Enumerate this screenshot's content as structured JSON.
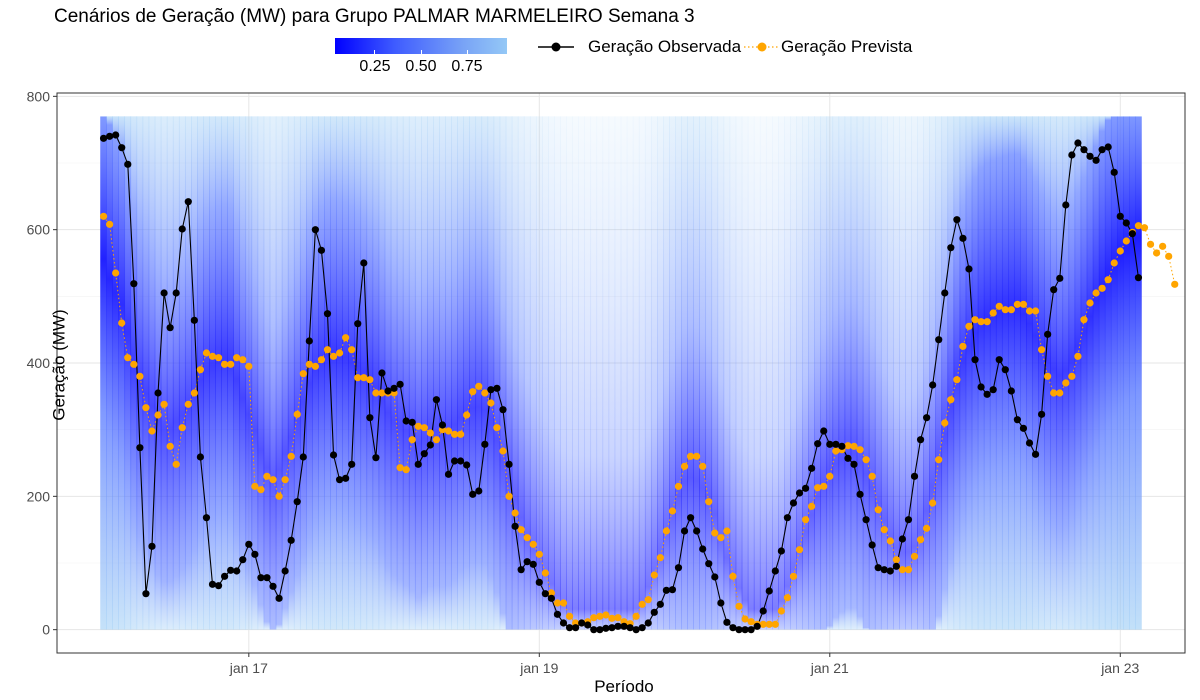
{
  "chart_data": {
    "type": "area",
    "title": "Cenários de Geração (MW) para Grupo PALMAR MARMELEIRO Semana 3",
    "xlabel": "Período",
    "ylabel": "Geração (MW)",
    "ylim": [
      -35,
      805
    ],
    "yticks": [
      0,
      200,
      400,
      600,
      800
    ],
    "xticks": [
      {
        "label": "jan 17",
        "hours": 24
      },
      {
        "label": "jan 19",
        "hours": 72
      },
      {
        "label": "jan 21",
        "hours": 120
      },
      {
        "label": "jan 23",
        "hours": 168
      }
    ],
    "x_start": "jan 16 00:00",
    "x_step_hours": 1,
    "grid": true,
    "fill_legend": {
      "ticks": [
        "0.25",
        "0.50",
        "0.75"
      ],
      "colors": [
        "#0000ff",
        "#94c8f6"
      ]
    },
    "series": [
      {
        "name": "Geração Observada",
        "color": "#000000",
        "style": "solid",
        "values": [
          737,
          740,
          742,
          723,
          698,
          519,
          273,
          54,
          125,
          355,
          505,
          453,
          505,
          601,
          642,
          464,
          259,
          168,
          68,
          66,
          80,
          89,
          88,
          105,
          128,
          113,
          78,
          78,
          65,
          47,
          88,
          134,
          192,
          259,
          433,
          600,
          569,
          474,
          262,
          225,
          227,
          248,
          459,
          550,
          318,
          258,
          385,
          358,
          362,
          368,
          313,
          311,
          248,
          264,
          277,
          345,
          307,
          233,
          253,
          253,
          247,
          203,
          208,
          278,
          360,
          362,
          330,
          248,
          155,
          90,
          102,
          98,
          71,
          54,
          47,
          23,
          10,
          3,
          3,
          10,
          7,
          0,
          0,
          2,
          3,
          5,
          5,
          3,
          0,
          3,
          10,
          26,
          38,
          59,
          60,
          93,
          148,
          168,
          148,
          121,
          99,
          79,
          40,
          11,
          3,
          0,
          0,
          0,
          5,
          28,
          58,
          88,
          118,
          168,
          190,
          205,
          212,
          242,
          279,
          298,
          278,
          278,
          275,
          257,
          248,
          203,
          165,
          127,
          93,
          90,
          88,
          95,
          136,
          165,
          230,
          285,
          318,
          367,
          435,
          505,
          573,
          615,
          587,
          541,
          405,
          364,
          353,
          360,
          405,
          390,
          358,
          315,
          302,
          280,
          263,
          323,
          443,
          510,
          527,
          637,
          712,
          730,
          720,
          710,
          704,
          720,
          724,
          686,
          620,
          610,
          594,
          528
        ]
      },
      {
        "name": "Geração Prevista",
        "color": "#ffa500",
        "style": "dotted",
        "values": [
          620,
          608,
          535,
          460,
          408,
          398,
          380,
          333,
          298,
          322,
          338,
          275,
          248,
          303,
          338,
          355,
          390,
          415,
          410,
          408,
          398,
          398,
          408,
          405,
          395,
          215,
          210,
          230,
          225,
          200,
          225,
          260,
          323,
          384,
          398,
          395,
          405,
          420,
          410,
          415,
          438,
          420,
          378,
          378,
          375,
          355,
          355,
          355,
          355,
          243,
          240,
          285,
          305,
          303,
          295,
          285,
          300,
          298,
          293,
          293,
          322,
          357,
          365,
          355,
          340,
          303,
          268,
          200,
          175,
          150,
          138,
          128,
          113,
          85,
          55,
          40,
          40,
          20,
          10,
          10,
          12,
          18,
          20,
          22,
          17,
          18,
          12,
          9,
          20,
          38,
          45,
          82,
          108,
          148,
          178,
          215,
          245,
          260,
          260,
          245,
          192,
          145,
          138,
          148,
          80,
          35,
          16,
          12,
          8,
          8,
          8,
          8,
          28,
          48,
          80,
          120,
          165,
          185,
          213,
          215,
          230,
          268,
          270,
          276,
          275,
          270,
          255,
          230,
          180,
          150,
          133,
          105,
          90,
          90,
          110,
          135,
          152,
          190,
          255,
          310,
          345,
          375,
          425,
          455,
          465,
          462,
          462,
          475,
          485,
          480,
          480,
          488,
          488,
          478,
          478,
          420,
          380,
          355,
          355,
          370,
          380,
          410,
          465,
          490,
          505,
          512,
          525,
          550,
          568,
          583,
          596,
          606,
          603,
          578,
          565,
          575,
          560,
          518
        ]
      }
    ]
  }
}
